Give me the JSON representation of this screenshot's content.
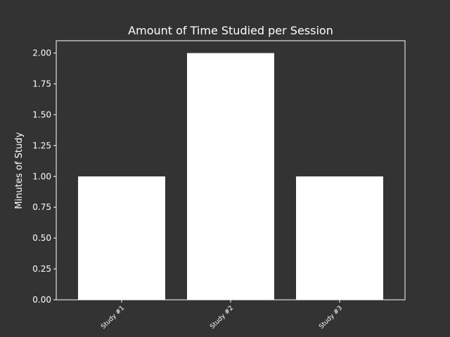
{
  "colors": {
    "background": "#333333",
    "bar": "#ffffff",
    "axis": "#ffffff",
    "text": "#ffffff"
  },
  "chart_data": {
    "type": "bar",
    "title": "Amount of Time Studied per Session",
    "xlabel": "",
    "ylabel": "Minutes of Study",
    "categories": [
      "Study #1",
      "Study #2",
      "Study #3"
    ],
    "values": [
      1.0,
      2.0,
      1.0
    ],
    "ylim": [
      0,
      2.1
    ],
    "yticks": [
      "0.00",
      "0.25",
      "0.50",
      "0.75",
      "1.00",
      "1.25",
      "1.50",
      "1.75",
      "2.00"
    ],
    "grid": false,
    "legend": "none"
  }
}
